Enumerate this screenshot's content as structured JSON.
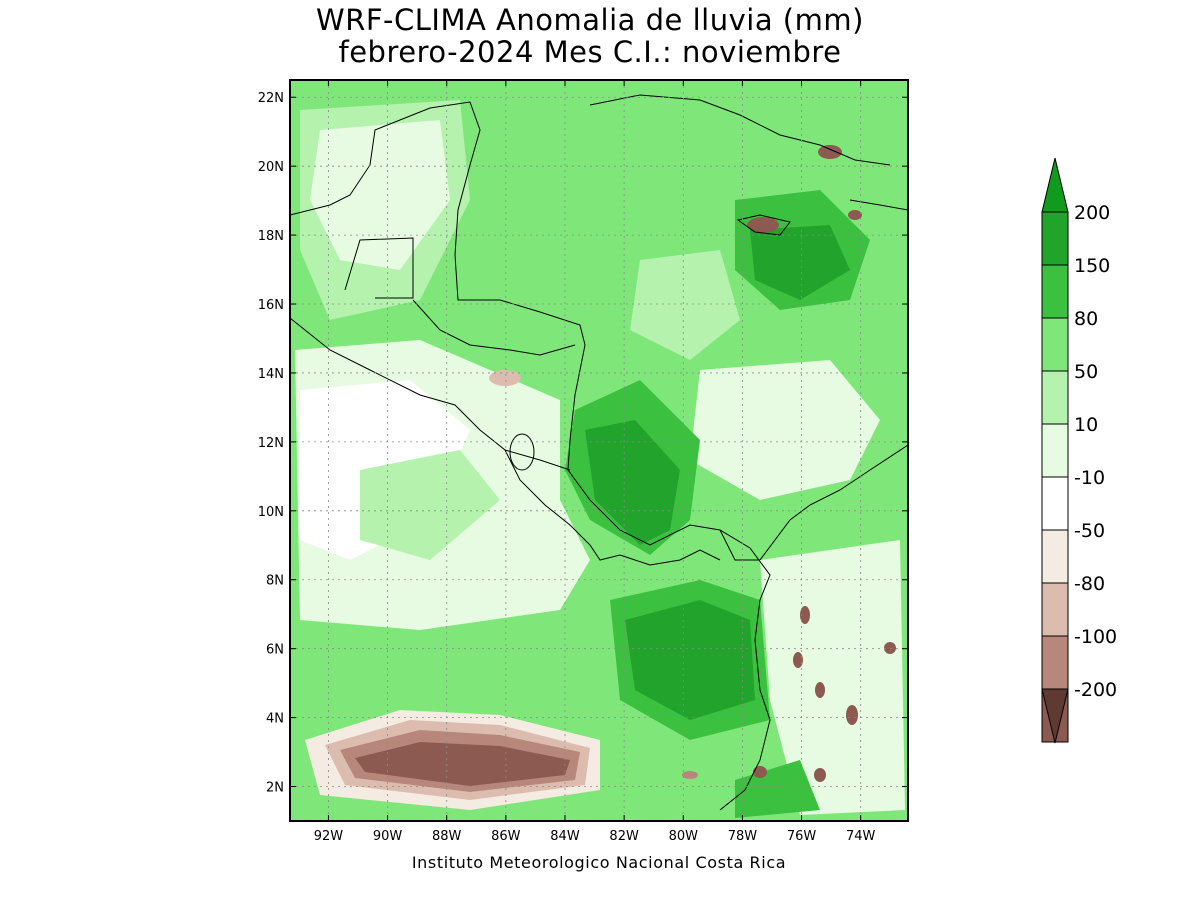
{
  "title": {
    "line1": "WRF-CLIMA Anomalia de lluvia (mm)",
    "line2": "febrero-2024 Mes C.I.: noviembre"
  },
  "credit": "Instituto Meteorologico Nacional Costa Rica",
  "map": {
    "region": "Central America, Caribbean and eastern tropical Pacific",
    "lon_range": [
      -93.3,
      -72.4
    ],
    "lat_range": [
      1.0,
      22.5
    ],
    "grid": true,
    "lat_ticks": [
      {
        "value": 22,
        "label": "22N"
      },
      {
        "value": 20,
        "label": "20N"
      },
      {
        "value": 18,
        "label": "18N"
      },
      {
        "value": 16,
        "label": "16N"
      },
      {
        "value": 14,
        "label": "14N"
      },
      {
        "value": 12,
        "label": "12N"
      },
      {
        "value": 10,
        "label": "10N"
      },
      {
        "value": 8,
        "label": "8N"
      },
      {
        "value": 6,
        "label": "6N"
      },
      {
        "value": 4,
        "label": "4N"
      },
      {
        "value": 2,
        "label": "2N"
      }
    ],
    "lon_ticks": [
      {
        "value": -92,
        "label": "92W"
      },
      {
        "value": -90,
        "label": "90W"
      },
      {
        "value": -88,
        "label": "88W"
      },
      {
        "value": -86,
        "label": "86W"
      },
      {
        "value": -84,
        "label": "84W"
      },
      {
        "value": -82,
        "label": "82W"
      },
      {
        "value": -80,
        "label": "80W"
      },
      {
        "value": -78,
        "label": "78W"
      },
      {
        "value": -76,
        "label": "76W"
      },
      {
        "value": -74,
        "label": "74W"
      }
    ]
  },
  "colorbar": {
    "levels": [
      {
        "label": "200",
        "color": "#22a32c"
      },
      {
        "label": "150",
        "color": "#3cc03f"
      },
      {
        "label": "80",
        "color": "#7fe77a"
      },
      {
        "label": "50",
        "color": "#b4f2ae"
      },
      {
        "label": "10",
        "color": "#e6fbe2"
      },
      {
        "label": "-10",
        "color": "#ffffff"
      },
      {
        "label": "-50",
        "color": "#f4ebe2"
      },
      {
        "label": "-80",
        "color": "#ddbcb0"
      },
      {
        "label": "-100",
        "color": "#b8877c"
      },
      {
        "label": "-200",
        "color": "#8c5a50"
      }
    ],
    "top_arrow_color": "#109a1e",
    "bottom_arrow_color": "#5e3a32"
  }
}
